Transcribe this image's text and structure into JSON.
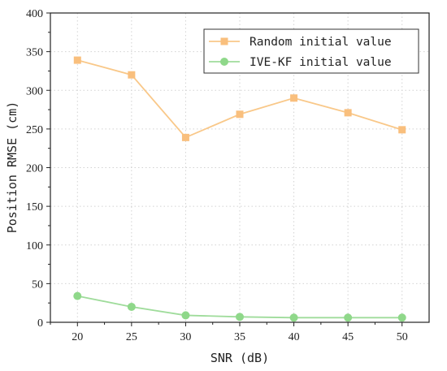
{
  "chart_data": {
    "type": "line",
    "xlabel": "SNR (dB)",
    "ylabel": "Position RMSE (cm)",
    "x": [
      20,
      25,
      30,
      35,
      40,
      45,
      50
    ],
    "xlim": [
      17.5,
      52.5
    ],
    "ylim": [
      0,
      400
    ],
    "xticks": [
      20,
      25,
      30,
      35,
      40,
      45,
      50
    ],
    "yticks": [
      0,
      50,
      100,
      150,
      200,
      250,
      300,
      350,
      400
    ],
    "grid": true,
    "legend_position": "top-right",
    "series": [
      {
        "name": "Random initial value",
        "marker": "square",
        "color": "#f9c889",
        "marker_color": "#f9bf7d",
        "values": [
          339,
          320,
          239,
          269,
          290,
          271,
          249
        ]
      },
      {
        "name": "IVE-KF initial value",
        "marker": "circle",
        "color": "#9fdc9b",
        "marker_color": "#8fd88a",
        "values": [
          34,
          20,
          9,
          7,
          6,
          6,
          6
        ]
      }
    ]
  }
}
